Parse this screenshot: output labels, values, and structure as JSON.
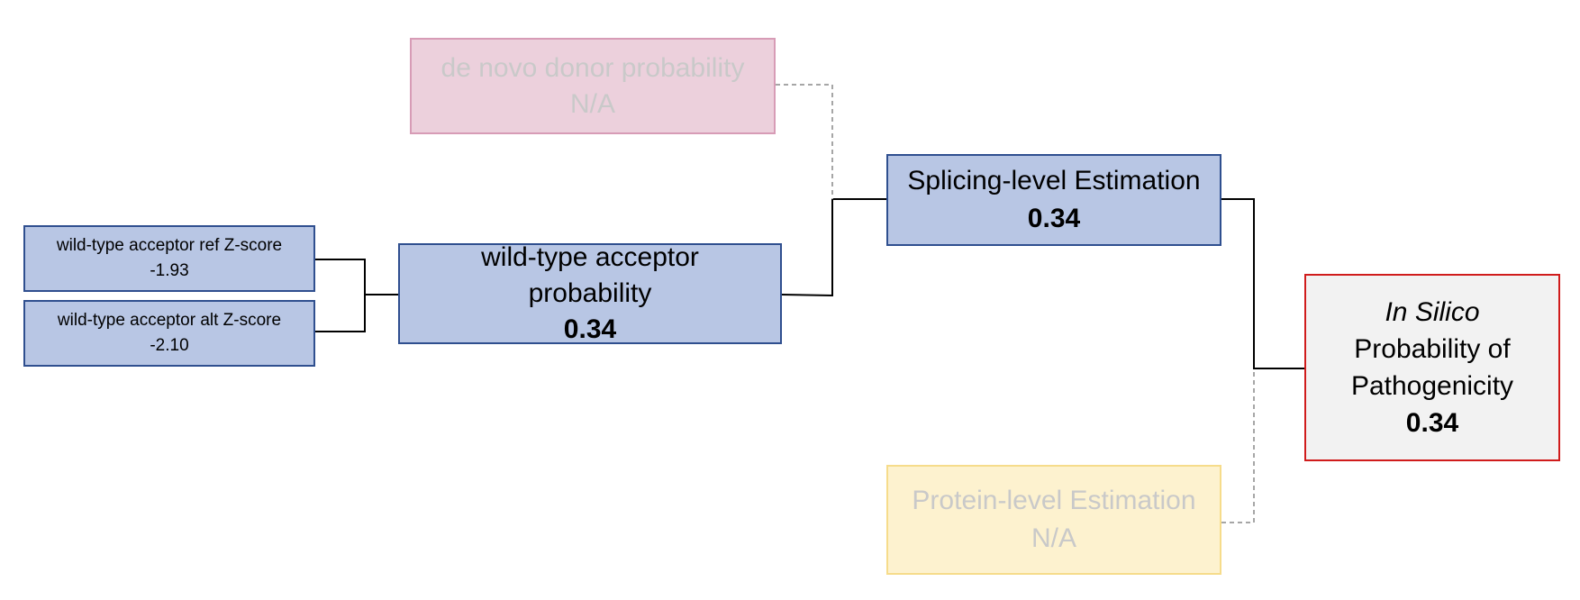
{
  "nodes": {
    "ref_z": {
      "label": "wild-type acceptor ref Z-score",
      "value": "-1.93"
    },
    "alt_z": {
      "label": "wild-type acceptor alt Z-score",
      "value": "-2.10"
    },
    "acceptor_prob": {
      "label_line1": "wild-type acceptor",
      "label_line2": "probability",
      "value": "0.34"
    },
    "donor_prob": {
      "label": "de novo donor probability",
      "value": "N/A"
    },
    "splicing": {
      "label": "Splicing-level Estimation",
      "value": "0.34"
    },
    "protein": {
      "label": "Protein-level Estimation",
      "value": "N/A"
    },
    "final": {
      "label_italic": "In Silico",
      "label_line2": "Probability of",
      "label_line3": "Pathogenicity",
      "value": "0.34"
    }
  },
  "colors": {
    "active_fill": "#b8c6e4",
    "active_border": "#2f4f8f",
    "inactive_donor_fill": "#ecd0dc",
    "inactive_protein_fill": "#fdf2cf",
    "final_border": "#d01c1c",
    "solid_wire": "#000000",
    "dashed_wire": "#a6a6a6"
  }
}
